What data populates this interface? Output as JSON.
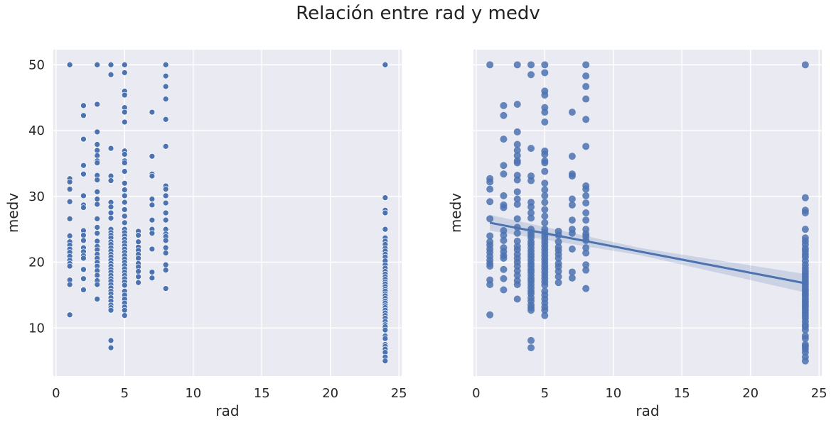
{
  "title": "Relación entre rad y medv",
  "chart_data": [
    {
      "type": "scatter",
      "xlabel": "rad",
      "ylabel": "medv",
      "xlim": [
        -0.2,
        25.2
      ],
      "ylim": [
        2.7,
        52.3
      ],
      "xticks": [
        0,
        5,
        10,
        15,
        20,
        25
      ],
      "yticks": [
        10,
        20,
        30,
        40,
        50
      ],
      "grid": true,
      "color": "#4c72b0",
      "background": "#eaeaf2",
      "series": [
        {
          "x": 1,
          "y": [
            50.0,
            32.7,
            32.2,
            31.1,
            29.2,
            26.6,
            24.0,
            23.1,
            22.6,
            22.0,
            21.5,
            20.9,
            20.3,
            19.8,
            19.4,
            17.3,
            16.6,
            12.0
          ]
        },
        {
          "x": 2,
          "y": [
            43.8,
            42.3,
            38.7,
            34.7,
            33.4,
            30.1,
            28.7,
            28.3,
            24.8,
            24.1,
            23.3,
            22.2,
            21.6,
            21.0,
            20.6,
            18.9,
            17.5,
            15.8
          ]
        },
        {
          "x": 3,
          "y": [
            50.0,
            44.0,
            39.8,
            37.9,
            37.0,
            36.2,
            35.4,
            35.1,
            33.2,
            32.5,
            30.7,
            29.6,
            28.8,
            26.6,
            25.3,
            24.4,
            23.2,
            22.4,
            21.9,
            21.2,
            20.6,
            20.0,
            19.4,
            18.7,
            18.0,
            17.2,
            16.6,
            14.4
          ]
        },
        {
          "x": 4,
          "y": [
            50.0,
            48.5,
            37.3,
            33.1,
            32.4,
            29.1,
            28.4,
            27.5,
            26.7,
            25.0,
            24.5,
            24.1,
            23.7,
            23.1,
            22.7,
            22.2,
            21.7,
            21.2,
            20.8,
            20.3,
            19.8,
            19.4,
            18.9,
            18.5,
            18.0,
            17.5,
            17.1,
            16.6,
            16.1,
            15.6,
            15.2,
            14.6,
            14.1,
            13.5,
            13.1,
            12.7,
            8.1,
            7.0
          ]
        },
        {
          "x": 5,
          "y": [
            50.0,
            48.8,
            46.0,
            45.4,
            43.5,
            42.8,
            41.3,
            36.9,
            36.4,
            35.4,
            35.1,
            33.8,
            32.0,
            31.0,
            30.1,
            29.1,
            28.0,
            27.0,
            26.0,
            25.0,
            24.5,
            24.0,
            23.5,
            23.0,
            22.5,
            22.0,
            21.5,
            21.0,
            20.5,
            20.0,
            19.5,
            19.0,
            18.5,
            18.0,
            17.5,
            17.0,
            16.5,
            15.6,
            15.0,
            14.4,
            13.8,
            13.2,
            12.7,
            11.9
          ]
        },
        {
          "x": 6,
          "y": [
            24.7,
            24.1,
            23.1,
            22.3,
            21.8,
            21.2,
            20.6,
            19.8,
            19.3,
            18.6,
            17.8,
            16.9
          ]
        },
        {
          "x": 7,
          "y": [
            42.8,
            36.1,
            33.4,
            33.1,
            29.6,
            28.7,
            26.4,
            25.0,
            24.4,
            22.0,
            18.5,
            17.6
          ]
        },
        {
          "x": 8,
          "y": [
            50.0,
            48.3,
            46.7,
            44.8,
            41.7,
            37.6,
            31.6,
            31.1,
            30.1,
            29.0,
            27.5,
            26.4,
            25.0,
            24.3,
            23.9,
            23.3,
            22.2,
            21.4,
            19.6,
            18.8,
            16.0
          ]
        },
        {
          "x": 24,
          "y": [
            50.0,
            29.8,
            27.9,
            27.5,
            25.0,
            23.7,
            23.2,
            22.7,
            22.1,
            21.7,
            21.2,
            20.8,
            20.2,
            19.6,
            19.1,
            18.6,
            18.2,
            17.8,
            17.4,
            17.0,
            16.7,
            16.3,
            15.9,
            15.6,
            15.2,
            14.9,
            14.5,
            14.1,
            13.8,
            13.4,
            13.1,
            12.7,
            12.3,
            11.9,
            11.5,
            11.0,
            10.5,
            10.2,
            9.7,
            8.8,
            8.4,
            7.5,
            7.2,
            6.8,
            6.3,
            5.6,
            5.0
          ]
        }
      ]
    },
    {
      "type": "scatter",
      "xlabel": "rad",
      "ylabel": "medv",
      "xlim": [
        -0.2,
        25.2
      ],
      "ylim": [
        2.7,
        52.3
      ],
      "xticks": [
        0,
        5,
        10,
        15,
        20,
        25
      ],
      "yticks": [
        10,
        20,
        30,
        40,
        50
      ],
      "grid": true,
      "color": "#4c72b0",
      "background": "#eaeaf2",
      "regression": {
        "x": [
          1,
          24
        ],
        "y": [
          26.0,
          16.8
        ],
        "ci_halfwidth_at_x": [
          [
            1,
            1.2
          ],
          [
            12,
            0.55
          ],
          [
            24,
            1.4
          ]
        ]
      },
      "series_same_as_left": true
    }
  ]
}
